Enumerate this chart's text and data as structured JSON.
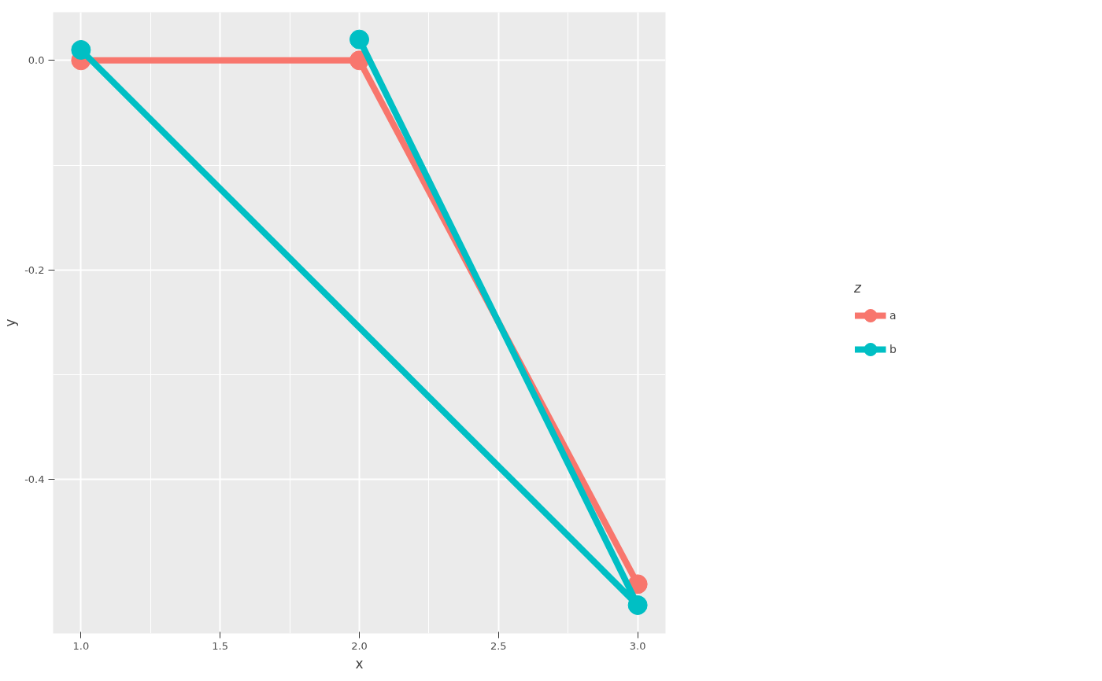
{
  "chart_data": {
    "type": "line",
    "xlabel": "x",
    "ylabel": "y",
    "legend_title": "z",
    "xlim": [
      0.9,
      3.1
    ],
    "ylim": [
      -0.547,
      0.046
    ],
    "xticks": [
      {
        "value": 1,
        "label": "1.0"
      },
      {
        "value": 1.5,
        "label": "1.5"
      },
      {
        "value": 2,
        "label": "2.0"
      },
      {
        "value": 2.5,
        "label": "2.5"
      },
      {
        "value": 3,
        "label": "3.0"
      }
    ],
    "yticks": [
      {
        "value": -0.4,
        "label": "-0.4"
      },
      {
        "value": -0.2,
        "label": "-0.2"
      },
      {
        "value": 0,
        "label": "0.0"
      }
    ],
    "grid": true,
    "legend": "right",
    "marker": "circle",
    "line_style": "solid",
    "series": [
      {
        "name": "a",
        "color": "#f8766d",
        "x": [
          1,
          2,
          3
        ],
        "values": [
          0,
          0,
          -0.5
        ]
      },
      {
        "name": "b",
        "color": "#00bfc4",
        "x": [
          1,
          3,
          2
        ],
        "values": [
          0.01,
          -0.52,
          0.02
        ]
      }
    ]
  }
}
